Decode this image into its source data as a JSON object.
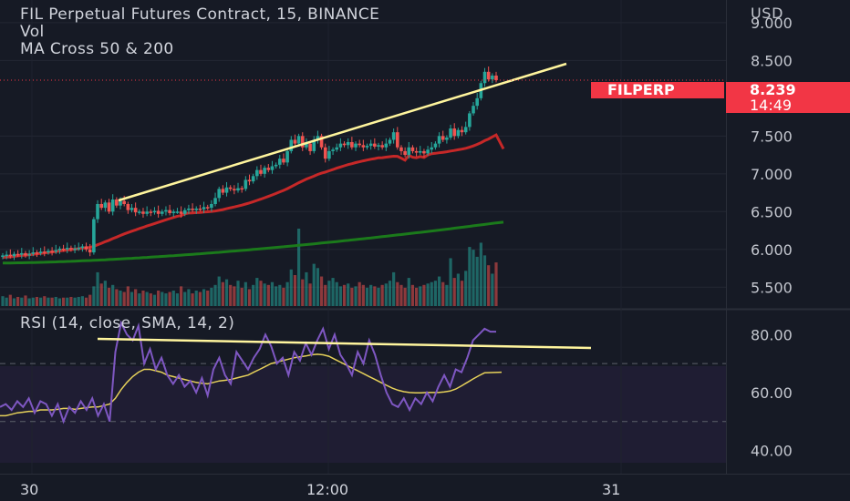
{
  "legend": {
    "title": "FIL Perpetual Futures Contract, 15, BINANCE",
    "vol": "Vol",
    "ma": "MA Cross 50 & 200",
    "rsi": "RSI (14, close, SMA, 14, 2)"
  },
  "currency": "USD",
  "price_tag": {
    "symbol": "FILPERP",
    "price": "8.239",
    "countdown": "14:49"
  },
  "colors": {
    "up": "#26a69a",
    "down": "#ef5350",
    "ma50": "#c62828",
    "ma200": "#1b7a1b",
    "trendline": "#fff59d",
    "rsi": "#7e57c2",
    "rsi_ma": "#e6d15a",
    "tag": "#f23645"
  },
  "chart_data": [
    {
      "type": "candlestick",
      "y_axis": {
        "ticks": [
          "9.000",
          "8.500",
          "7.500",
          "7.000",
          "6.500",
          "6.000",
          "5.500"
        ],
        "ylim": [
          5.25,
          9.3
        ]
      },
      "x_axis": {
        "ticks": [
          "30",
          "12:00",
          "31"
        ]
      },
      "close": [
        5.92,
        5.93,
        5.91,
        5.94,
        5.93,
        5.95,
        5.92,
        5.94,
        5.96,
        5.95,
        5.97,
        5.96,
        5.98,
        5.97,
        5.99,
        6.01,
        6.0,
        6.02,
        6.0,
        6.01,
        6.02,
        6.04,
        6.0,
        5.96,
        6.4,
        6.6,
        6.55,
        6.62,
        6.5,
        6.66,
        6.58,
        6.64,
        6.6,
        6.52,
        6.55,
        6.49,
        6.5,
        6.47,
        6.5,
        6.49,
        6.51,
        6.47,
        6.5,
        6.52,
        6.48,
        6.5,
        6.5,
        6.47,
        6.52,
        6.54,
        6.52,
        6.54,
        6.53,
        6.56,
        6.55,
        6.6,
        6.68,
        6.8,
        6.75,
        6.82,
        6.8,
        6.78,
        6.81,
        6.8,
        6.92,
        6.9,
        6.97,
        7.05,
        7.0,
        7.08,
        7.05,
        7.1,
        7.12,
        7.2,
        7.15,
        7.3,
        7.45,
        7.4,
        7.5,
        7.35,
        7.4,
        7.3,
        7.45,
        7.5,
        7.35,
        7.2,
        7.3,
        7.32,
        7.35,
        7.4,
        7.38,
        7.42,
        7.35,
        7.4,
        7.38,
        7.35,
        7.37,
        7.4,
        7.36,
        7.38,
        7.35,
        7.4,
        7.45,
        7.55,
        7.35,
        7.3,
        7.25,
        7.35,
        7.3,
        7.28,
        7.3,
        7.27,
        7.32,
        7.35,
        7.4,
        7.5,
        7.45,
        7.48,
        7.6,
        7.5,
        7.58,
        7.55,
        7.62,
        7.8,
        7.9,
        8.0,
        8.2,
        8.35,
        8.25,
        8.3,
        8.239
      ],
      "volume": [
        14,
        12,
        16,
        11,
        13,
        12,
        15,
        11,
        12,
        13,
        12,
        14,
        12,
        12,
        13,
        11,
        12,
        12,
        13,
        12,
        13,
        14,
        12,
        16,
        28,
        48,
        32,
        36,
        26,
        30,
        24,
        22,
        20,
        28,
        20,
        24,
        18,
        22,
        20,
        18,
        16,
        22,
        20,
        18,
        20,
        22,
        18,
        28,
        20,
        24,
        18,
        22,
        20,
        24,
        22,
        26,
        30,
        42,
        34,
        38,
        30,
        28,
        36,
        26,
        34,
        24,
        30,
        40,
        36,
        32,
        30,
        34,
        28,
        30,
        26,
        34,
        52,
        44,
        110,
        38,
        48,
        32,
        60,
        54,
        42,
        30,
        36,
        40,
        34,
        28,
        30,
        32,
        26,
        28,
        34,
        30,
        26,
        30,
        28,
        26,
        30,
        32,
        36,
        48,
        34,
        30,
        26,
        40,
        30,
        26,
        28,
        30,
        32,
        34,
        36,
        42,
        34,
        30,
        68,
        40,
        46,
        36,
        50,
        84,
        80,
        70,
        90,
        72,
        58,
        46,
        62
      ]
    },
    {
      "type": "line",
      "name": "RSI",
      "y_axis": {
        "ticks": [
          "80.00",
          "60.00",
          "40.00"
        ],
        "ylim": [
          32,
          87
        ]
      },
      "series": [
        {
          "name": "RSI",
          "values": [
            55,
            56,
            54,
            57,
            55,
            58,
            53,
            57,
            56,
            52,
            56,
            50,
            55,
            53,
            57,
            54,
            58,
            52,
            56,
            50,
            74,
            84,
            80,
            78,
            83,
            70,
            75,
            68,
            72,
            66,
            63,
            66,
            62,
            64,
            60,
            65,
            59,
            68,
            72,
            66,
            63,
            74,
            71,
            68,
            72,
            75,
            80,
            76,
            70,
            72,
            66,
            74,
            71,
            77,
            73,
            78,
            82,
            75,
            80,
            73,
            70,
            66,
            74,
            70,
            78,
            73,
            66,
            60,
            56,
            55,
            58,
            54,
            58,
            56,
            60,
            57,
            62,
            66,
            62,
            68,
            67,
            72,
            78,
            80,
            82,
            81,
            81
          ]
        },
        {
          "name": "RSI MA",
          "values": [
            52,
            52,
            52.5,
            53,
            53.2,
            53.5,
            53.5,
            54,
            54,
            54,
            54.2,
            54.5,
            54.5,
            54.2,
            54.5,
            54.8,
            55,
            55,
            55.5,
            56,
            58,
            61,
            63.5,
            65.5,
            67,
            68,
            68,
            67.5,
            67,
            66,
            65.5,
            65,
            64.5,
            64,
            63.5,
            63.2,
            63,
            63.5,
            64,
            64.2,
            64.5,
            65,
            65.5,
            66,
            67,
            68,
            69,
            70,
            70.5,
            71,
            71.5,
            72,
            72.3,
            72.6,
            73,
            73.2,
            73,
            72.5,
            71.5,
            70.5,
            69.5,
            68.5,
            67.5,
            66.5,
            65.5,
            64.5,
            63.5,
            62.5,
            61.5,
            60.8,
            60.3,
            60,
            59.9,
            59.9,
            60,
            60,
            60,
            60.2,
            60.5,
            61.2,
            62.3,
            63.5,
            64.7,
            65.8,
            66.8
          ]
        }
      ],
      "annotation": "trendline"
    }
  ]
}
